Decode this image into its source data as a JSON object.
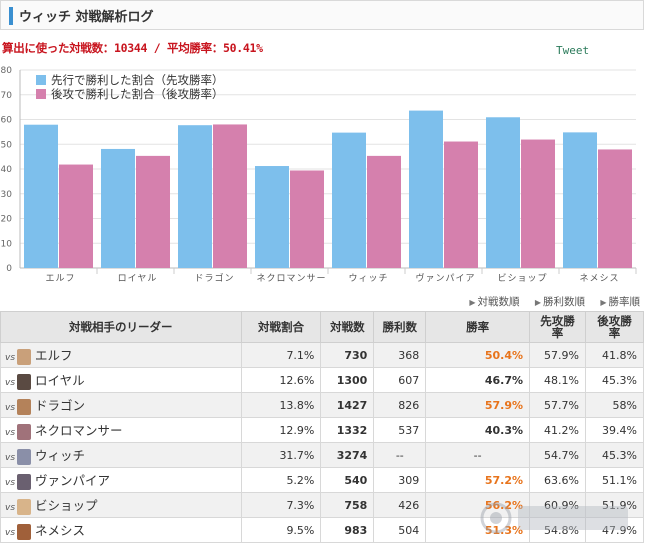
{
  "header": {
    "title": "ウィッチ 対戦解析ログ"
  },
  "summary": "算出に使った対戦数：10344 / 平均勝率：50.41%",
  "tweet_label": "Tweet",
  "chart_data": {
    "type": "bar",
    "categories": [
      "エルフ",
      "ロイヤル",
      "ドラゴン",
      "ネクロマンサー",
      "ウィッチ",
      "ヴァンパイア",
      "ビショップ",
      "ネメシス"
    ],
    "series": [
      {
        "name": "先行で勝利した割合（先攻勝率）",
        "color": "#7dbfec",
        "values": [
          57.9,
          48.1,
          57.7,
          41.2,
          54.7,
          63.6,
          60.9,
          54.8
        ]
      },
      {
        "name": "後攻で勝利した割合（後攻勝率）",
        "color": "#d580ad",
        "values": [
          41.8,
          45.3,
          58,
          39.4,
          45.3,
          51.1,
          51.9,
          47.9
        ]
      }
    ],
    "ylim": [
      0,
      80
    ],
    "yticks": [
      0,
      10,
      20,
      30,
      40,
      50,
      60,
      70,
      80
    ],
    "grid": true,
    "legend": "top-left"
  },
  "sort_links": [
    "対戦数順",
    "勝利数順",
    "勝率順"
  ],
  "table": {
    "headers": {
      "leader": "対戦相手のリーダー",
      "ratio": "対戦割合",
      "matches": "対戦数",
      "wins": "勝利数",
      "rate": "勝率",
      "first_l1": "先攻勝",
      "first_l2": "率",
      "second_l1": "後攻勝",
      "second_l2": "率"
    },
    "vs_label": "vs",
    "rows": [
      {
        "leader": "エルフ",
        "ratio": "7.1%",
        "matches": "730",
        "wins": "368",
        "rate": "50.4%",
        "first": "57.9%",
        "second": "41.8%",
        "hi": true,
        "avatar": "#c9a07a"
      },
      {
        "leader": "ロイヤル",
        "ratio": "12.6%",
        "matches": "1300",
        "wins": "607",
        "rate": "46.7%",
        "first": "48.1%",
        "second": "45.3%",
        "hi": false,
        "avatar": "#5a4a42"
      },
      {
        "leader": "ドラゴン",
        "ratio": "13.8%",
        "matches": "1427",
        "wins": "826",
        "rate": "57.9%",
        "first": "57.7%",
        "second": "58%",
        "hi": true,
        "avatar": "#b4825a"
      },
      {
        "leader": "ネクロマンサー",
        "ratio": "12.9%",
        "matches": "1332",
        "wins": "537",
        "rate": "40.3%",
        "first": "41.2%",
        "second": "39.4%",
        "hi": false,
        "avatar": "#a0727a"
      },
      {
        "leader": "ウィッチ",
        "ratio": "31.7%",
        "matches": "3274",
        "wins": "--",
        "rate": "--",
        "first": "54.7%",
        "second": "45.3%",
        "hi": false,
        "plain": true,
        "avatar": "#8a8fa8"
      },
      {
        "leader": "ヴァンパイア",
        "ratio": "5.2%",
        "matches": "540",
        "wins": "309",
        "rate": "57.2%",
        "first": "63.6%",
        "second": "51.1%",
        "hi": true,
        "avatar": "#6a6070"
      },
      {
        "leader": "ビショップ",
        "ratio": "7.3%",
        "matches": "758",
        "wins": "426",
        "rate": "56.2%",
        "first": "60.9%",
        "second": "51.9%",
        "hi": true,
        "avatar": "#d8b48a"
      },
      {
        "leader": "ネメシス",
        "ratio": "9.5%",
        "matches": "983",
        "wins": "504",
        "rate": "51.3%",
        "first": "54.8%",
        "second": "47.9%",
        "hi": true,
        "avatar": "#a0603a"
      }
    ]
  }
}
